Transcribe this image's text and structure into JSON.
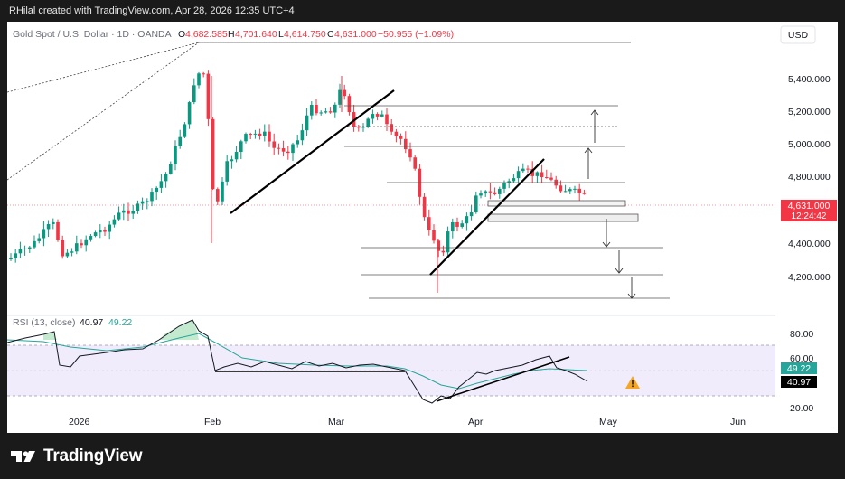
{
  "window": {
    "credit": "RHilal created with TradingView.com, Apr 28, 2026 12:35 UTC+4"
  },
  "header": {
    "symbol": "Gold Spot / U.S. Dollar · 1D · OANDA",
    "open_label": "O",
    "open": "4,682.585",
    "high_label": "H",
    "high": "4,701.640",
    "low_label": "L",
    "low": "4,614.750",
    "close_label": "C",
    "close": "4,631.000",
    "change": "−50.955 (−1.09%)",
    "currency_button": "USD"
  },
  "price_axis": {
    "ticks": [
      "5,400.000",
      "5,200.000",
      "5,000.000",
      "4,800.000",
      "4,400.000",
      "4,200.000"
    ],
    "last_price": "4,631.000",
    "countdown": "12:24:42"
  },
  "time_axis": {
    "ticks": [
      "2026",
      "Feb",
      "Mar",
      "Apr",
      "May",
      "Jun"
    ]
  },
  "rsi": {
    "label": "RSI (13, close)",
    "value": "40.97",
    "signal": "49.22",
    "ticks": [
      "80.00",
      "60.00",
      "20.00"
    ],
    "value_badge": "40.97",
    "signal_badge": "49.22"
  },
  "branding": {
    "logo_text": "TradingView"
  },
  "colors": {
    "up": "#089981",
    "down": "#f23645",
    "rsi_line": "#131722",
    "rsi_signal": "#26a69a",
    "rsi_band": "#f1ecfb",
    "badge_red": "#f23645",
    "badge_teal": "#26a69a",
    "warning": "#f5a623"
  },
  "icons": {
    "warning": "warning-icon",
    "logo": "tradingview-logo-icon"
  }
}
